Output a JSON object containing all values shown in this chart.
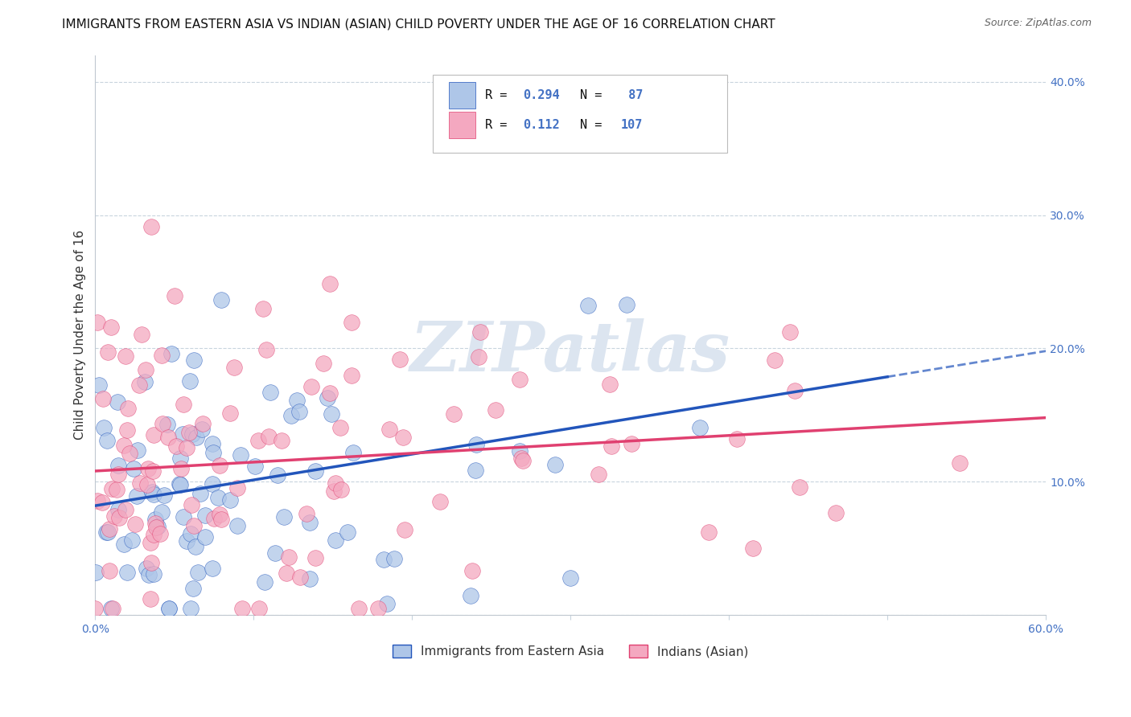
{
  "title": "IMMIGRANTS FROM EASTERN ASIA VS INDIAN (ASIAN) CHILD POVERTY UNDER THE AGE OF 16 CORRELATION CHART",
  "source": "Source: ZipAtlas.com",
  "ylabel": "Child Poverty Under the Age of 16",
  "xlim": [
    0,
    0.6
  ],
  "ylim": [
    0,
    0.42
  ],
  "xtick_vals": [
    0.0,
    0.1,
    0.2,
    0.3,
    0.4,
    0.5,
    0.6
  ],
  "ytick_vals": [
    0.0,
    0.1,
    0.2,
    0.3,
    0.4
  ],
  "xtick_labels": [
    "0.0%",
    "",
    "",
    "",
    "",
    "",
    "60.0%"
  ],
  "ytick_labels": [
    "",
    "10.0%",
    "20.0%",
    "30.0%",
    "40.0%"
  ],
  "series1_color": "#aec6e8",
  "series2_color": "#f4a8c0",
  "trendline1_color": "#2255bb",
  "trendline2_color": "#e04070",
  "watermark": "ZIPatlas",
  "watermark_color": "#dce5f0",
  "background_color": "#ffffff",
  "grid_color": "#c8d4de",
  "title_fontsize": 11,
  "axis_label_fontsize": 11,
  "tick_fontsize": 10,
  "tick_color": "#4472c4",
  "blue_r": 0.294,
  "blue_n": 87,
  "pink_r": 0.112,
  "pink_n": 107,
  "blue_trend_x0": 0.0,
  "blue_trend_y0": 0.082,
  "blue_trend_x1": 0.6,
  "blue_trend_y1": 0.198,
  "pink_trend_x0": 0.0,
  "pink_trend_y0": 0.108,
  "pink_trend_x1": 0.6,
  "pink_trend_y1": 0.148
}
